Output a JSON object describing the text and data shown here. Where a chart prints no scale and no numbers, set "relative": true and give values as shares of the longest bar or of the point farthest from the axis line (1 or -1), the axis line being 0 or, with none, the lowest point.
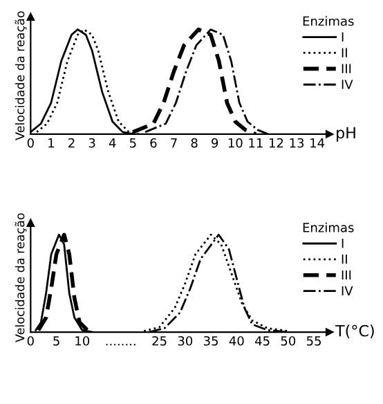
{
  "chart_data": [
    {
      "type": "line",
      "relative": true,
      "xlabel": "pH",
      "ylabel": "Velocidade da reação",
      "legend_title": "Enzimas",
      "legend": "top right",
      "grid": false,
      "xlim": [
        0,
        14.6
      ],
      "xticks": [
        0,
        1,
        2,
        3,
        4,
        5,
        6,
        7,
        8,
        9,
        10,
        11,
        12,
        13,
        14
      ],
      "series": [
        {
          "name": "I",
          "color": "#000000",
          "line_style": "solid",
          "x": [
            0,
            0.5,
            1,
            1.5,
            2,
            2.3,
            2.7,
            3,
            3.5,
            4,
            4.5,
            5
          ],
          "values": [
            0.02,
            0.1,
            0.3,
            0.7,
            0.95,
            1,
            0.95,
            0.8,
            0.4,
            0.12,
            0.02,
            0
          ]
        },
        {
          "name": "II",
          "color": "#000000",
          "line_style": "dotted",
          "x": [
            0.3,
            0.8,
            1.3,
            1.8,
            2.3,
            2.6,
            3,
            3.3,
            3.8,
            4.3,
            4.8,
            5.3
          ],
          "values": [
            0.02,
            0.1,
            0.3,
            0.7,
            0.95,
            1,
            0.95,
            0.8,
            0.4,
            0.12,
            0.02,
            0
          ]
        },
        {
          "name": "III",
          "color": "#000000",
          "line_style": "dashed",
          "x": [
            5,
            6,
            6.5,
            7,
            7.5,
            8.2,
            8.8,
            9.2,
            9.6,
            10,
            10.5,
            11
          ],
          "values": [
            0.02,
            0.1,
            0.3,
            0.6,
            0.85,
            1,
            0.95,
            0.7,
            0.3,
            0.12,
            0.04,
            0
          ]
        },
        {
          "name": "IV",
          "color": "#000000",
          "line_style": "dashdot",
          "x": [
            5.6,
            6.6,
            7.1,
            7.6,
            8.1,
            8.8,
            9.4,
            9.8,
            10.2,
            10.6,
            11.1,
            11.6
          ],
          "values": [
            0.02,
            0.1,
            0.3,
            0.6,
            0.85,
            1,
            0.95,
            0.7,
            0.3,
            0.12,
            0.04,
            0
          ]
        }
      ]
    },
    {
      "type": "line",
      "relative": true,
      "xlabel": "T(°C)",
      "ylabel": "Velocidade da reação",
      "legend_title": "Enzimas",
      "legend": "top right",
      "grid": false,
      "xlim": [
        0,
        58
      ],
      "xticks": [
        0,
        5,
        10,
        {
          "value": 17.5,
          "label": "........"
        },
        25,
        30,
        35,
        40,
        45,
        50,
        55
      ],
      "series": [
        {
          "name": "I",
          "color": "#000000",
          "line_style": "solid",
          "x": [
            1,
            2,
            3,
            4,
            5.5,
            6.5,
            7.5,
            8.5,
            10,
            12
          ],
          "values": [
            0.02,
            0.1,
            0.4,
            0.8,
            1,
            0.9,
            0.4,
            0.15,
            0.02,
            0
          ]
        },
        {
          "name": "II",
          "color": "#000000",
          "line_style": "dotted",
          "x": [
            22,
            25,
            28,
            30,
            32,
            35,
            37,
            39,
            41,
            43,
            46,
            50
          ],
          "values": [
            0.01,
            0.05,
            0.25,
            0.5,
            0.8,
            1,
            0.9,
            0.6,
            0.3,
            0.12,
            0.04,
            0.01
          ]
        },
        {
          "name": "III",
          "color": "#000000",
          "line_style": "dashed",
          "x": [
            1.5,
            3,
            4,
            5,
            6.5,
            7.5,
            8.5,
            9.5,
            11
          ],
          "values": [
            0.02,
            0.15,
            0.45,
            0.8,
            1,
            0.8,
            0.35,
            0.1,
            0.02
          ]
        },
        {
          "name": "IV",
          "color": "#000000",
          "line_style": "dashdot",
          "x": [
            23,
            26,
            29,
            31,
            33,
            36.5,
            38.5,
            40,
            41.5,
            43,
            46,
            50
          ],
          "values": [
            0,
            0.04,
            0.2,
            0.45,
            0.75,
            1,
            0.85,
            0.55,
            0.25,
            0.08,
            0.02,
            0
          ]
        }
      ]
    }
  ]
}
